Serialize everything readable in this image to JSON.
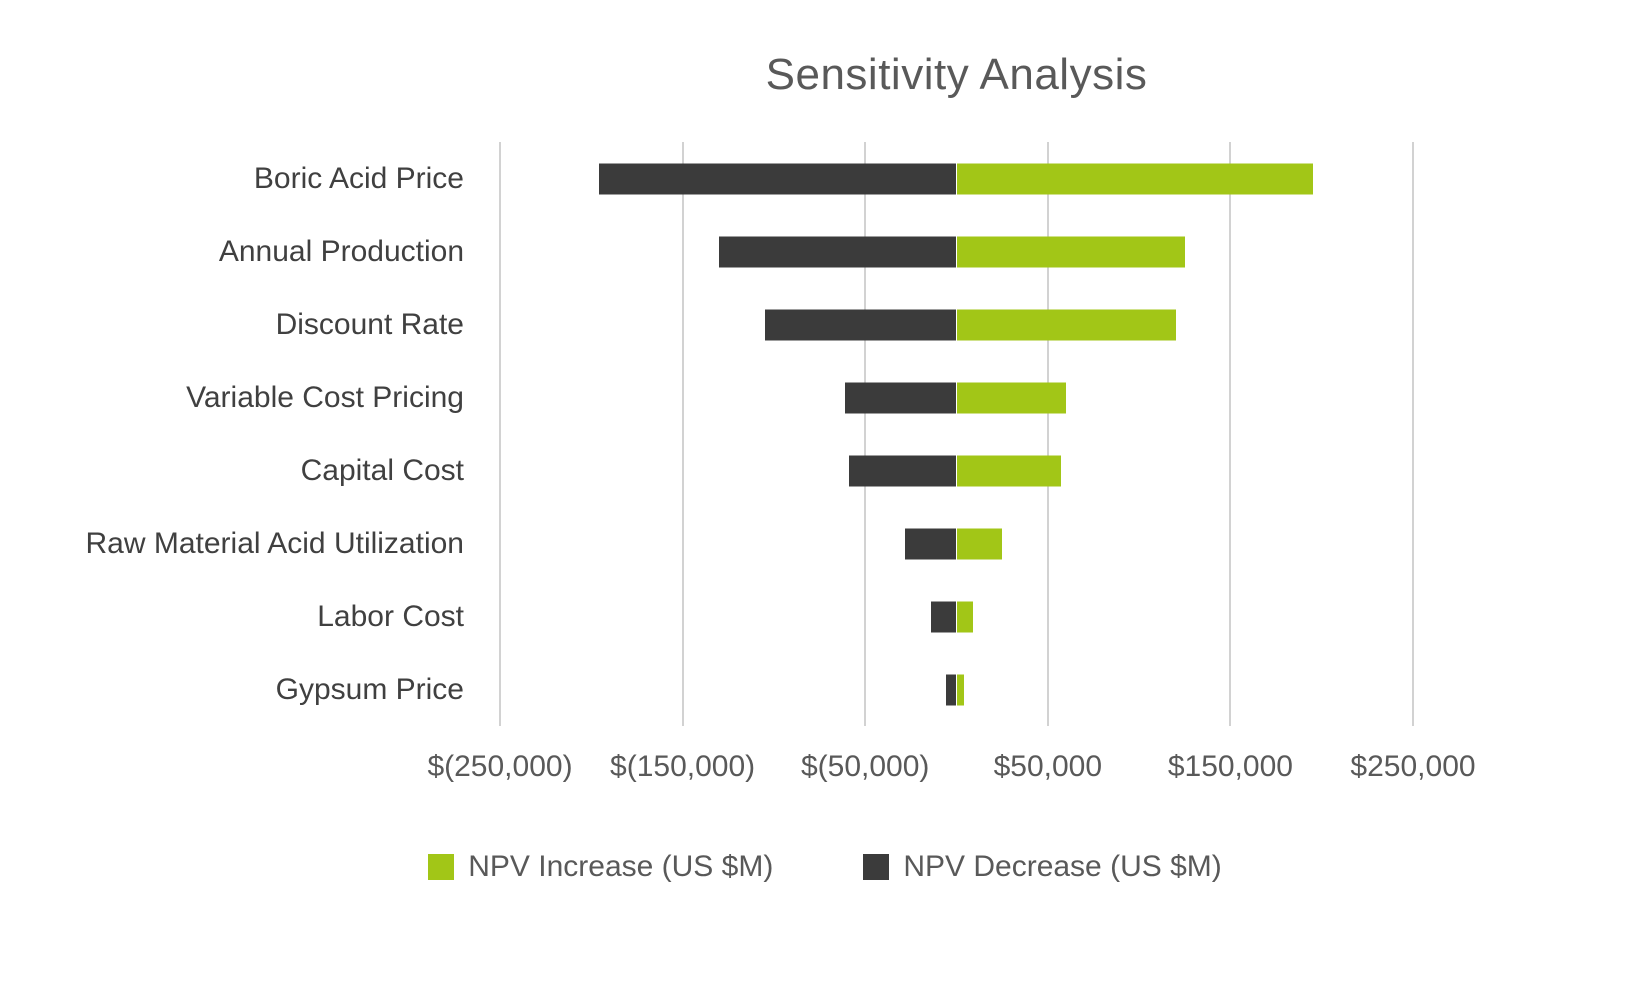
{
  "chart_data": {
    "type": "bar",
    "orientation": "horizontal",
    "subtype": "tornado",
    "title": "Sensitivity Analysis",
    "categories": [
      "Boric Acid Price",
      "Annual Production",
      "Discount Rate",
      "Variable Cost Pricing",
      "Capital Cost",
      "Raw Material Acid Utilization",
      "Labor Cost",
      "Gypsum Price"
    ],
    "series": [
      {
        "name": "NPV Increase (US $M)",
        "color": "#a2c617",
        "values": [
          195000,
          125000,
          120000,
          60000,
          57000,
          25000,
          9000,
          4000
        ]
      },
      {
        "name": "NPV Decrease (US $M)",
        "color": "#3b3b3b",
        "values": [
          -196000,
          -130000,
          -105000,
          -61000,
          -59000,
          -28000,
          -14000,
          -6000
        ]
      }
    ],
    "xlabel": "",
    "ylabel": "",
    "xlim": [
      -250000,
      250000
    ],
    "x_ticks": [
      -250000,
      -150000,
      -50000,
      50000,
      150000,
      250000
    ],
    "x_tick_labels": [
      "$(250,000)",
      "$(150,000)",
      "$(50,000)",
      "$50,000",
      "$150,000",
      "$250,000"
    ],
    "grid": "vertical",
    "legend_position": "bottom"
  },
  "colors": {
    "title_text": "#595959",
    "category_text": "#404040",
    "tick_text": "#595959",
    "gridline": "#d2d2d2",
    "background": "#ffffff",
    "npv_increase": "#a2c617",
    "npv_decrease": "#3b3b3b"
  }
}
